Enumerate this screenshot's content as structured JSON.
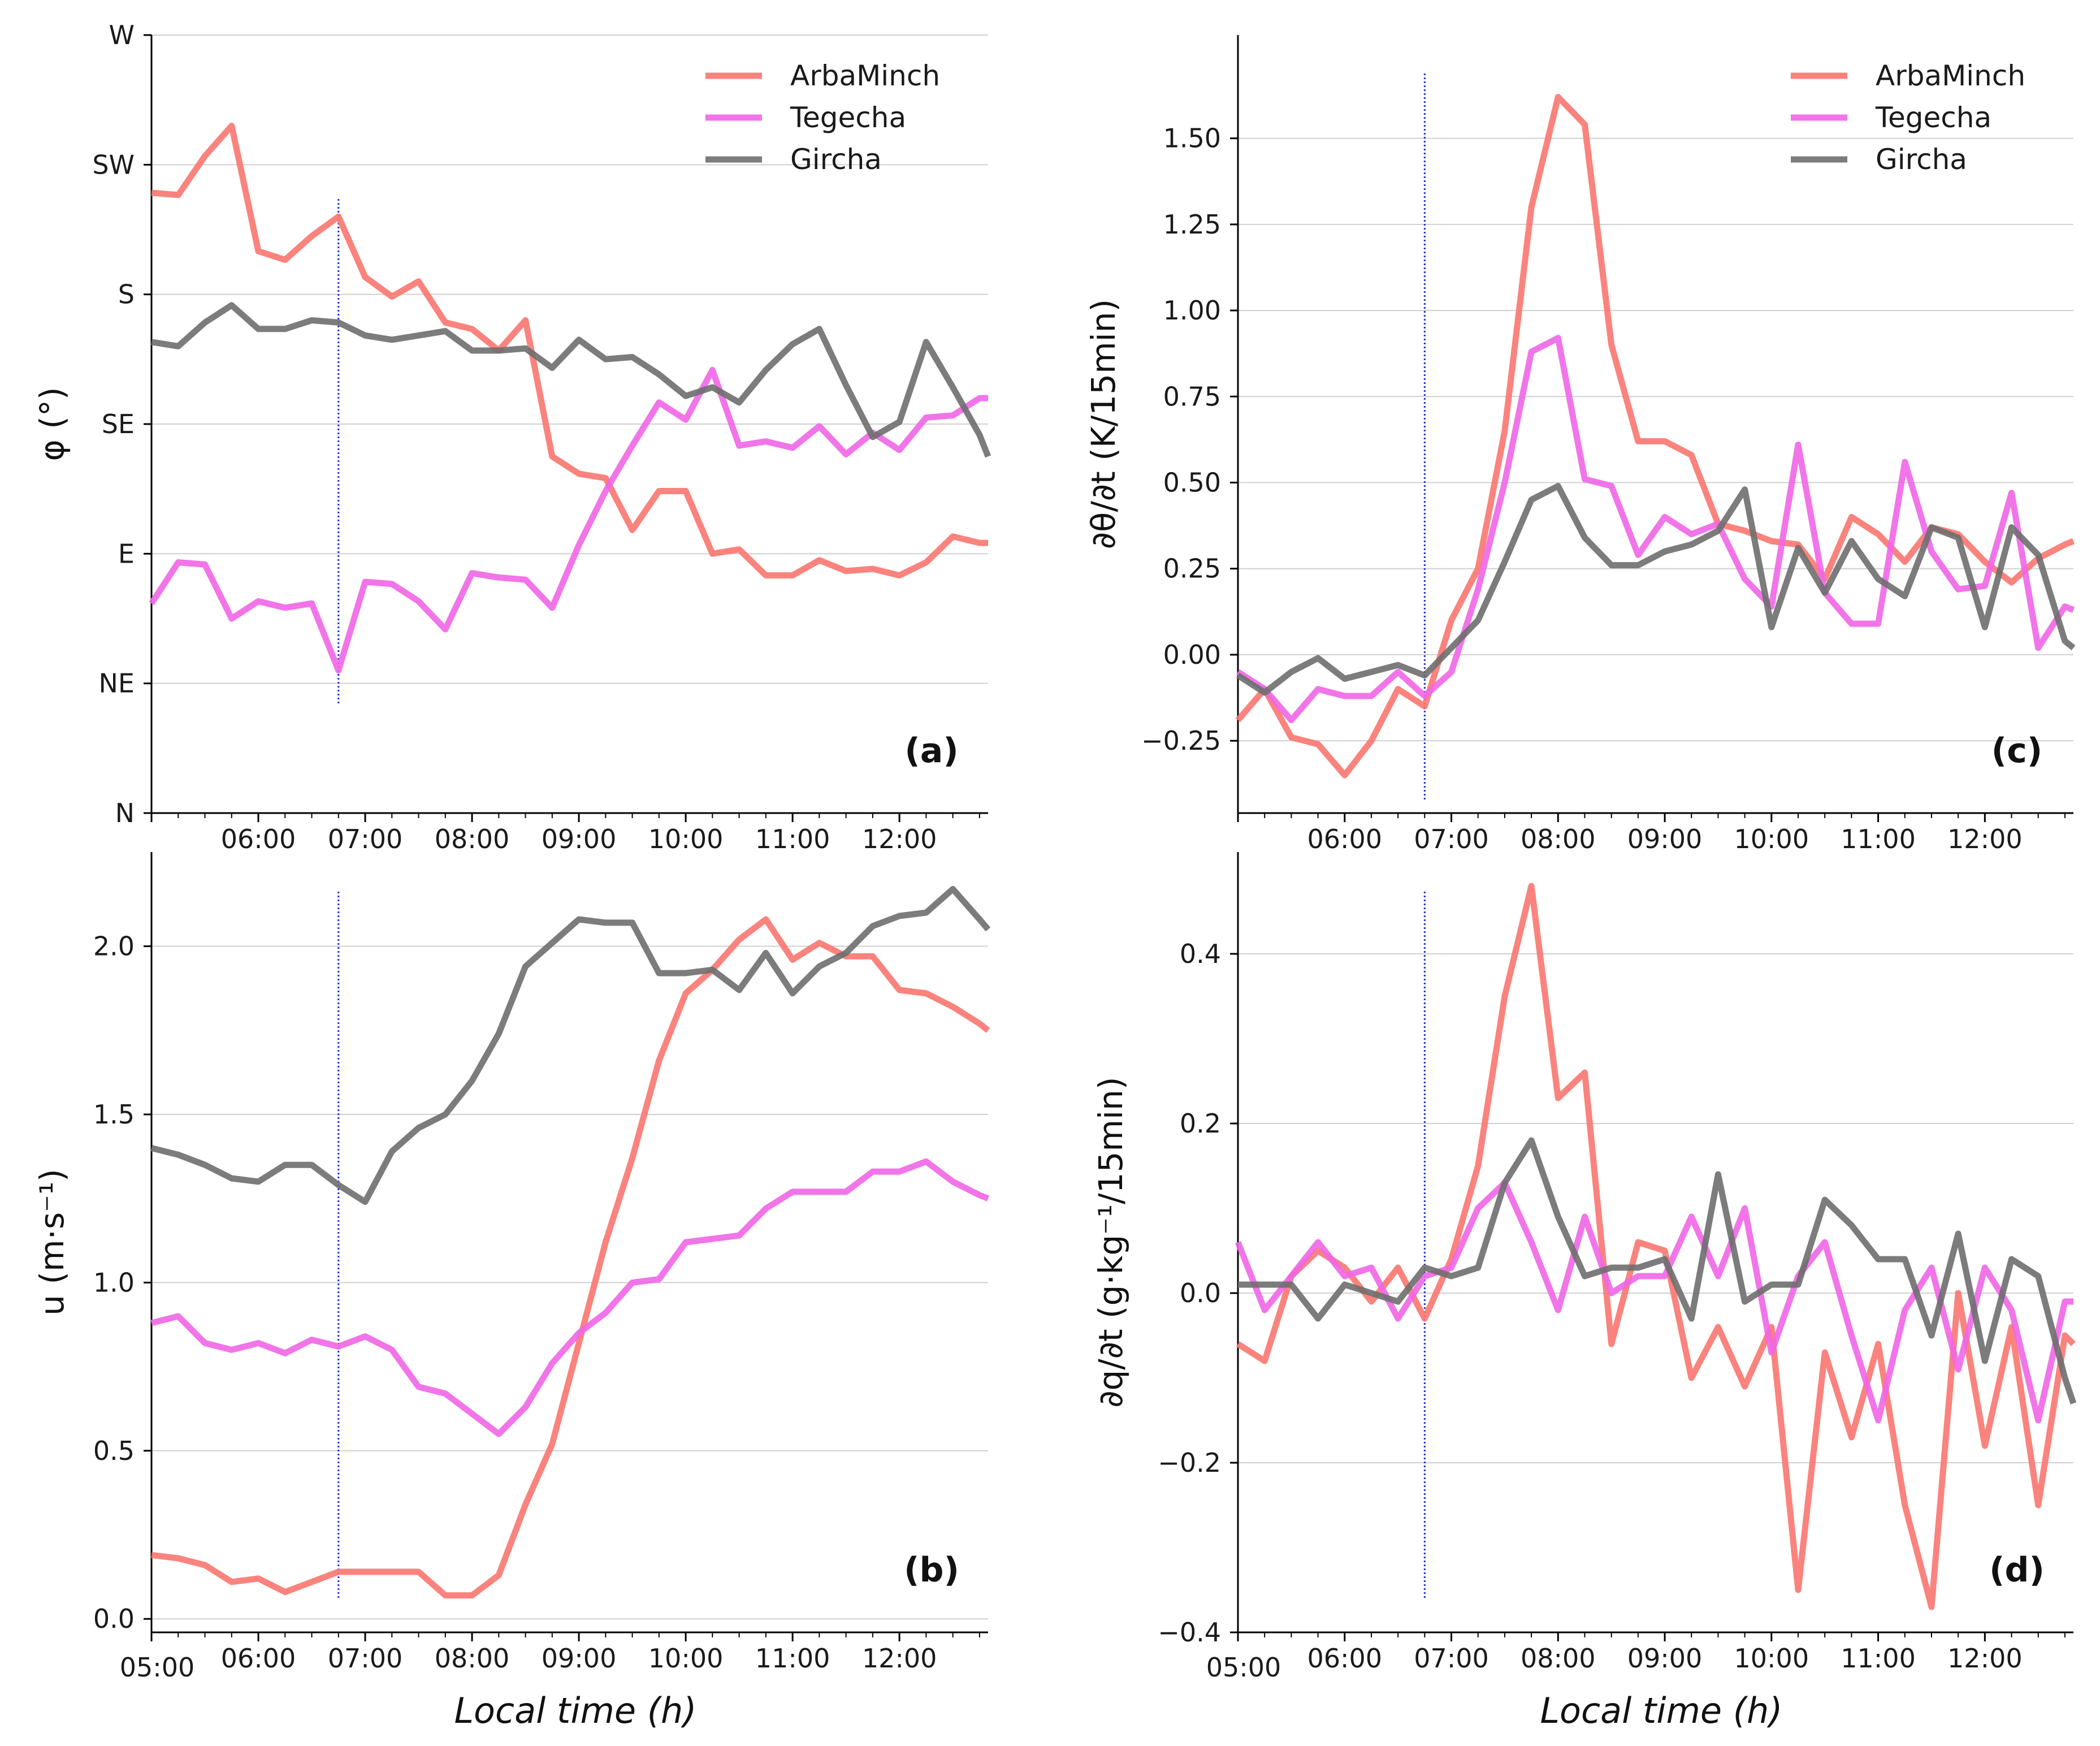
{
  "figure": {
    "xlabel_prefix": "Local time",
    "xlabel_unit": "h",
    "series_names": [
      "ArbaMinch",
      "Tegecha",
      "Gircha"
    ],
    "colors": {
      "ArbaMinch": "#f97570",
      "Tegecha": "#f066e6",
      "Gircha": "#6e6e6e",
      "marker_line": "#1f2fe0",
      "grid": "#d0d0d0"
    },
    "marker_time": 6.75
  },
  "chart_data": [
    {
      "id": "a",
      "panel_label": "(a)",
      "type": "line",
      "title": "",
      "ylabel": "φ (°)",
      "xlim": [
        5.0,
        12.83
      ],
      "ylim": [
        0,
        360
      ],
      "yticks": [
        0,
        60,
        120,
        180,
        240,
        300,
        360
      ],
      "yticklabels": [
        "N",
        "NE",
        "E",
        "SE",
        "S",
        "SW",
        "W"
      ],
      "xticks": [
        6,
        7,
        8,
        9,
        10,
        11,
        12
      ],
      "xticklabels": [
        "06:00",
        "07:00",
        "08:00",
        "09:00",
        "10:00",
        "11:00",
        "12:00"
      ],
      "legend": "top-right",
      "x": [
        5.0,
        5.25,
        5.5,
        5.75,
        6.0,
        6.25,
        6.5,
        6.75,
        7.0,
        7.25,
        7.5,
        7.75,
        8.0,
        8.25,
        8.5,
        8.75,
        9.0,
        9.25,
        9.5,
        9.75,
        10.0,
        10.25,
        10.5,
        10.75,
        11.0,
        11.25,
        11.5,
        11.75,
        12.0,
        12.25,
        12.5,
        12.75,
        12.83
      ],
      "series": [
        {
          "name": "ArbaMinch",
          "values": [
            287,
            286,
            304,
            318,
            260,
            256,
            267,
            276,
            248,
            239,
            246,
            227,
            224,
            214,
            228,
            165,
            157,
            155,
            131,
            149,
            149,
            120,
            122,
            110,
            110,
            117,
            112,
            113,
            110,
            116,
            128,
            125,
            125
          ]
        },
        {
          "name": "Tegecha",
          "values": [
            97,
            116,
            115,
            90,
            98,
            95,
            97,
            66,
            107,
            106,
            98,
            85,
            111,
            109,
            108,
            95,
            124,
            149,
            170,
            190,
            182,
            205,
            170,
            172,
            169,
            179,
            166,
            176,
            168,
            183,
            184,
            192,
            192
          ]
        },
        {
          "name": "Gircha",
          "values": [
            218,
            216,
            227,
            235,
            224,
            224,
            228,
            227,
            221,
            219,
            221,
            223,
            214,
            214,
            215,
            206,
            219,
            210,
            211,
            203,
            193,
            197,
            190,
            205,
            217,
            224,
            198,
            174,
            181,
            218,
            197,
            175,
            165
          ]
        }
      ]
    },
    {
      "id": "c",
      "panel_label": "(c)",
      "type": "line",
      "title": "",
      "ylabel": "∂θ/∂t (K/15min)",
      "xlim": [
        5.0,
        12.83
      ],
      "ylim": [
        -0.46,
        1.8
      ],
      "yticks": [
        -0.25,
        0.0,
        0.25,
        0.5,
        0.75,
        1.0,
        1.25,
        1.5
      ],
      "yticklabels": [
        "−0.25",
        "0.00",
        "0.25",
        "0.50",
        "0.75",
        "1.00",
        "1.25",
        "1.50"
      ],
      "xticks": [
        6,
        7,
        8,
        9,
        10,
        11,
        12
      ],
      "xticklabels": [
        "06:00",
        "07:00",
        "08:00",
        "09:00",
        "10:00",
        "11:00",
        "12:00"
      ],
      "legend": "top-right",
      "x": [
        5.0,
        5.25,
        5.5,
        5.75,
        6.0,
        6.25,
        6.5,
        6.75,
        7.0,
        7.25,
        7.5,
        7.75,
        8.0,
        8.25,
        8.5,
        8.75,
        9.0,
        9.25,
        9.5,
        9.75,
        10.0,
        10.25,
        10.5,
        10.75,
        11.0,
        11.25,
        11.5,
        11.75,
        12.0,
        12.25,
        12.5,
        12.75,
        12.83
      ],
      "series": [
        {
          "name": "ArbaMinch",
          "values": [
            -0.19,
            -0.1,
            -0.24,
            -0.26,
            -0.35,
            -0.25,
            -0.1,
            -0.15,
            0.1,
            0.25,
            0.65,
            1.3,
            1.62,
            1.54,
            0.9,
            0.62,
            0.62,
            0.58,
            0.38,
            0.36,
            0.33,
            0.32,
            0.22,
            0.4,
            0.35,
            0.27,
            0.37,
            0.35,
            0.27,
            0.21,
            0.28,
            0.32,
            0.33
          ]
        },
        {
          "name": "Tegecha",
          "values": [
            -0.05,
            -0.1,
            -0.19,
            -0.1,
            -0.12,
            -0.12,
            -0.05,
            -0.12,
            -0.05,
            0.19,
            0.5,
            0.88,
            0.92,
            0.51,
            0.49,
            0.29,
            0.4,
            0.35,
            0.38,
            0.22,
            0.14,
            0.61,
            0.18,
            0.09,
            0.09,
            0.56,
            0.3,
            0.19,
            0.2,
            0.47,
            0.02,
            0.14,
            0.13
          ]
        },
        {
          "name": "Gircha",
          "values": [
            -0.06,
            -0.11,
            -0.05,
            -0.01,
            -0.07,
            -0.05,
            -0.03,
            -0.06,
            0.02,
            0.1,
            0.27,
            0.45,
            0.49,
            0.34,
            0.26,
            0.26,
            0.3,
            0.32,
            0.36,
            0.48,
            0.08,
            0.31,
            0.18,
            0.33,
            0.22,
            0.17,
            0.37,
            0.34,
            0.08,
            0.37,
            0.29,
            0.04,
            0.02
          ]
        }
      ]
    },
    {
      "id": "b",
      "panel_label": "(b)",
      "type": "line",
      "title": "",
      "ylabel": "u (m·s⁻¹)",
      "xlim": [
        5.0,
        12.83
      ],
      "ylim": [
        -0.04,
        2.28
      ],
      "yticks": [
        0.0,
        0.5,
        1.0,
        1.5,
        2.0
      ],
      "yticklabels": [
        "0.0",
        "0.5",
        "1.0",
        "1.5",
        "2.0"
      ],
      "xticks": [
        5,
        6,
        7,
        8,
        9,
        10,
        11,
        12
      ],
      "xticklabels": [
        "05:00",
        "06:00",
        "07:00",
        "08:00",
        "09:00",
        "10:00",
        "11:00",
        "12:00"
      ],
      "xlabel": "Local time (h)",
      "x": [
        5.0,
        5.25,
        5.5,
        5.75,
        6.0,
        6.25,
        6.5,
        6.75,
        7.0,
        7.25,
        7.5,
        7.75,
        8.0,
        8.25,
        8.5,
        8.75,
        9.0,
        9.25,
        9.5,
        9.75,
        10.0,
        10.25,
        10.5,
        10.75,
        11.0,
        11.25,
        11.5,
        11.75,
        12.0,
        12.25,
        12.5,
        12.75,
        12.83
      ],
      "series": [
        {
          "name": "ArbaMinch",
          "values": [
            0.19,
            0.18,
            0.16,
            0.11,
            0.12,
            0.08,
            0.11,
            0.14,
            0.14,
            0.14,
            0.14,
            0.07,
            0.07,
            0.13,
            0.34,
            0.52,
            0.82,
            1.12,
            1.37,
            1.66,
            1.86,
            1.93,
            2.02,
            2.08,
            1.96,
            2.01,
            1.97,
            1.97,
            1.87,
            1.86,
            1.82,
            1.77,
            1.75
          ]
        },
        {
          "name": "Tegecha",
          "values": [
            0.88,
            0.9,
            0.82,
            0.8,
            0.82,
            0.79,
            0.83,
            0.81,
            0.84,
            0.8,
            0.69,
            0.67,
            0.61,
            0.55,
            0.63,
            0.76,
            0.85,
            0.91,
            1.0,
            1.01,
            1.12,
            1.13,
            1.14,
            1.22,
            1.27,
            1.27,
            1.27,
            1.33,
            1.33,
            1.36,
            1.3,
            1.26,
            1.25
          ]
        },
        {
          "name": "Gircha",
          "values": [
            1.4,
            1.38,
            1.35,
            1.31,
            1.3,
            1.35,
            1.35,
            1.29,
            1.24,
            1.39,
            1.46,
            1.5,
            1.6,
            1.74,
            1.94,
            2.01,
            2.08,
            2.07,
            2.07,
            1.92,
            1.92,
            1.93,
            1.87,
            1.98,
            1.86,
            1.94,
            1.98,
            2.06,
            2.09,
            2.1,
            2.17,
            2.08,
            2.05
          ]
        }
      ]
    },
    {
      "id": "d",
      "panel_label": "(d)",
      "type": "line",
      "title": "",
      "ylabel": "∂q/∂t (g·kg⁻¹/15min)",
      "xlim": [
        5.0,
        12.83
      ],
      "ylim": [
        -0.4,
        0.52
      ],
      "yticks": [
        -0.4,
        -0.2,
        0.0,
        0.2,
        0.4
      ],
      "yticklabels": [
        "−0.4",
        "−0.2",
        "0.0",
        "0.2",
        "0.4"
      ],
      "xticks": [
        5,
        6,
        7,
        8,
        9,
        10,
        11,
        12
      ],
      "xticklabels": [
        "05:00",
        "06:00",
        "07:00",
        "08:00",
        "09:00",
        "10:00",
        "11:00",
        "12:00"
      ],
      "xlabel": "Local time (h)",
      "x": [
        5.0,
        5.25,
        5.5,
        5.75,
        6.0,
        6.25,
        6.5,
        6.75,
        7.0,
        7.25,
        7.5,
        7.75,
        8.0,
        8.25,
        8.5,
        8.75,
        9.0,
        9.25,
        9.5,
        9.75,
        10.0,
        10.25,
        10.5,
        10.75,
        11.0,
        11.25,
        11.5,
        11.75,
        12.0,
        12.25,
        12.5,
        12.75,
        12.83
      ],
      "series": [
        {
          "name": "ArbaMinch",
          "values": [
            -0.06,
            -0.08,
            0.02,
            0.05,
            0.03,
            -0.01,
            0.03,
            -0.03,
            0.04,
            0.15,
            0.35,
            0.48,
            0.23,
            0.26,
            -0.06,
            0.06,
            0.05,
            -0.1,
            -0.04,
            -0.11,
            -0.04,
            -0.35,
            -0.07,
            -0.17,
            -0.06,
            -0.25,
            -0.37,
            0.0,
            -0.18,
            -0.04,
            -0.25,
            -0.05,
            -0.06
          ]
        },
        {
          "name": "Tegecha",
          "values": [
            0.06,
            -0.02,
            0.02,
            0.06,
            0.02,
            0.03,
            -0.03,
            0.02,
            0.03,
            0.1,
            0.13,
            0.06,
            -0.02,
            0.09,
            0.0,
            0.02,
            0.02,
            0.09,
            0.02,
            0.1,
            -0.07,
            0.02,
            0.06,
            -0.05,
            -0.15,
            -0.02,
            0.03,
            -0.09,
            0.03,
            -0.02,
            -0.15,
            -0.01,
            -0.01
          ]
        },
        {
          "name": "Gircha",
          "values": [
            0.01,
            0.01,
            0.01,
            -0.03,
            0.01,
            0.0,
            -0.01,
            0.03,
            0.02,
            0.03,
            0.13,
            0.18,
            0.09,
            0.02,
            0.03,
            0.03,
            0.04,
            -0.03,
            0.14,
            -0.01,
            0.01,
            0.01,
            0.11,
            0.08,
            0.04,
            0.04,
            -0.05,
            0.07,
            -0.08,
            0.04,
            0.02,
            -0.1,
            -0.13
          ]
        }
      ]
    }
  ]
}
